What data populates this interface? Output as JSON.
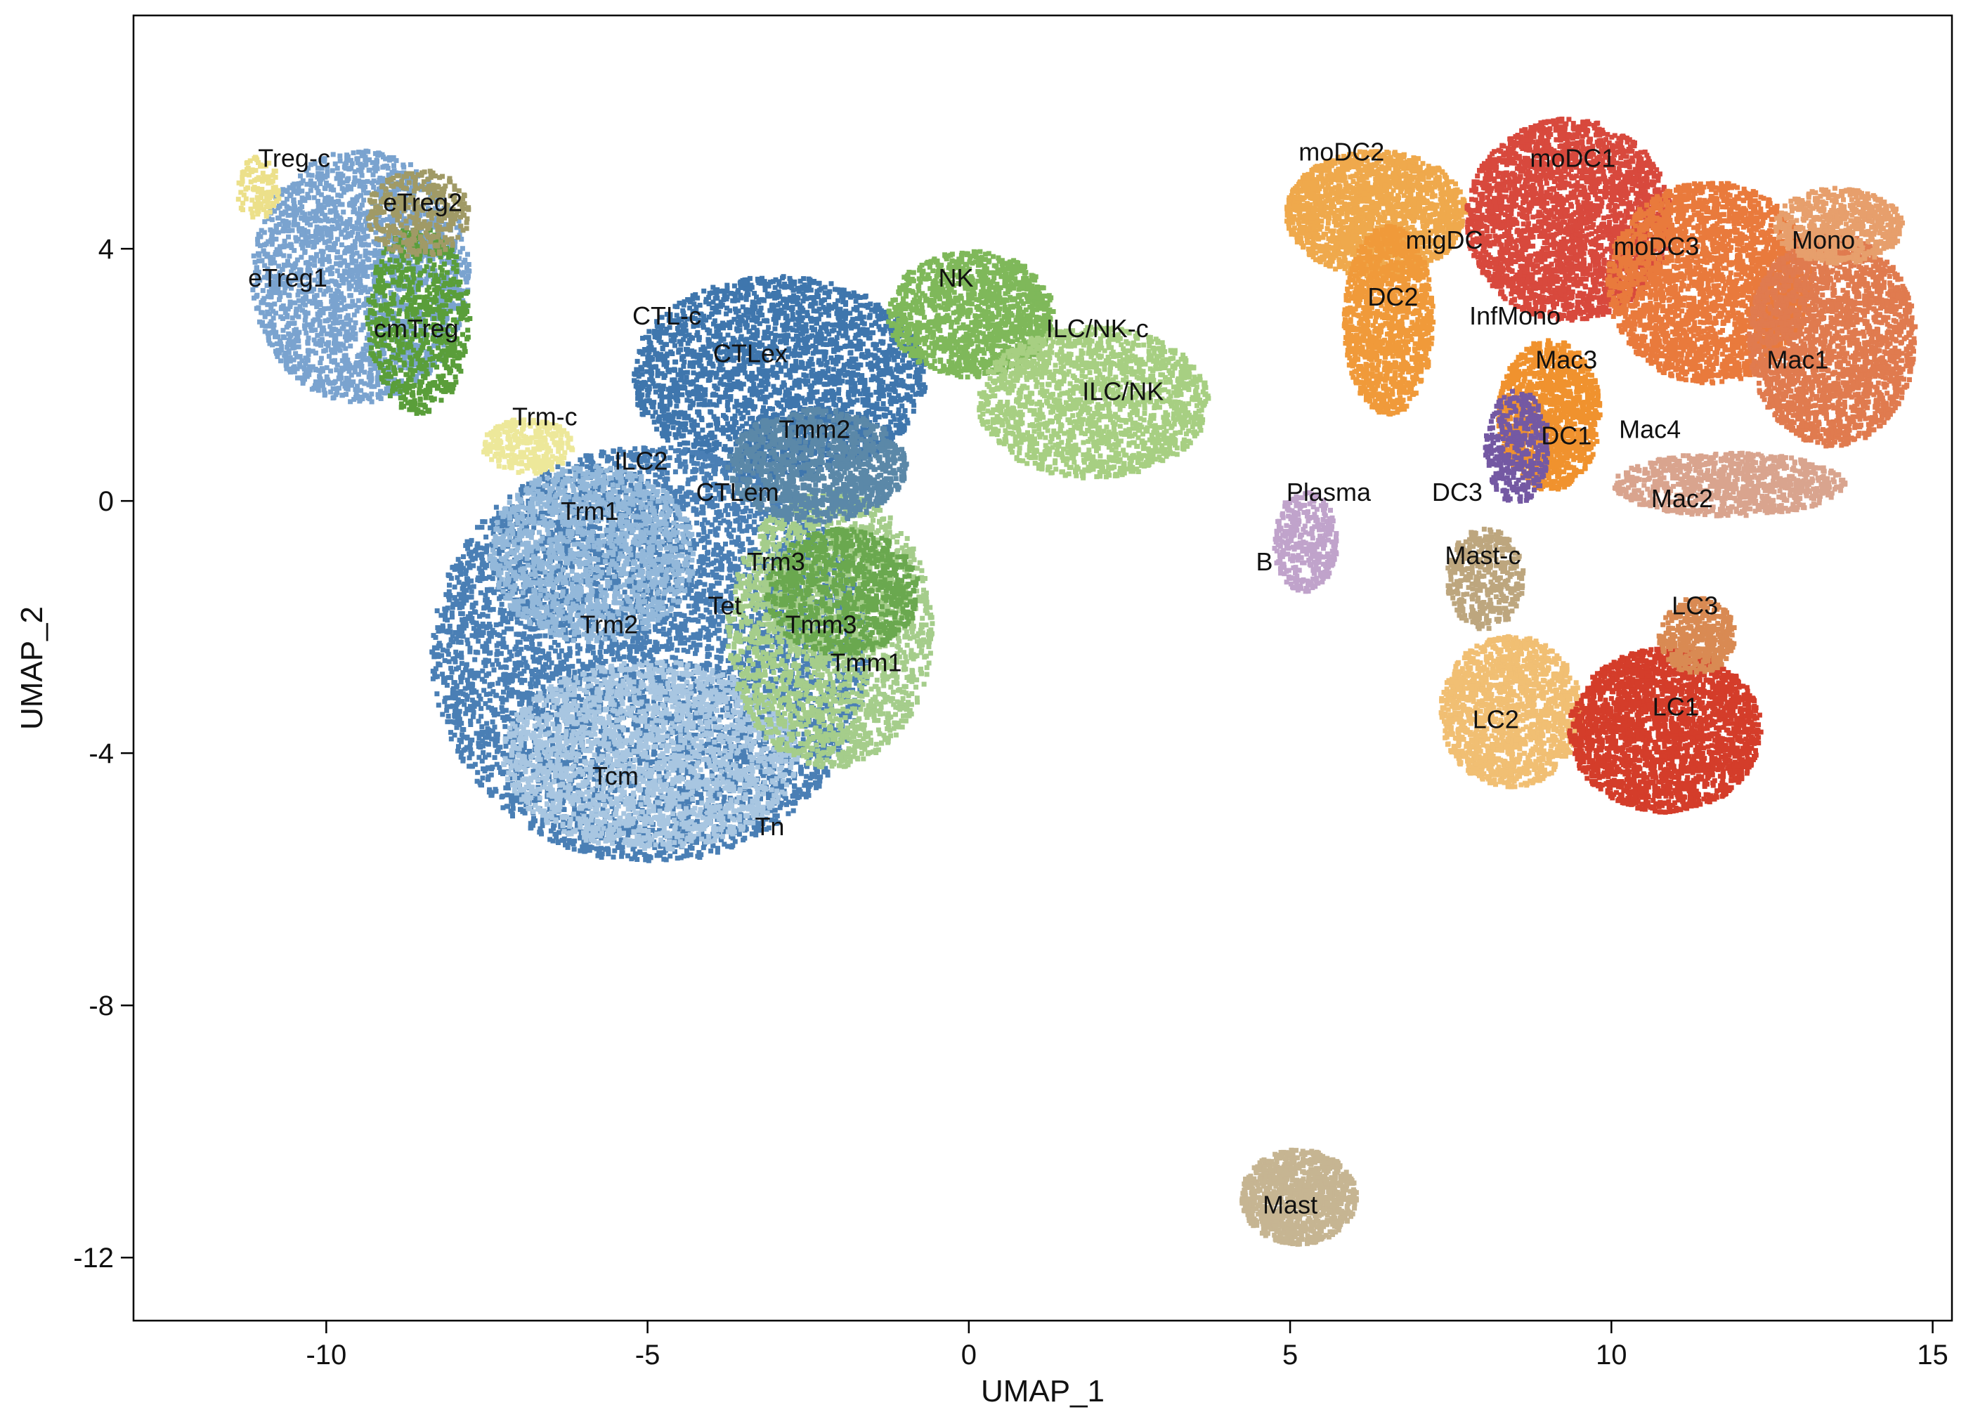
{
  "chart_data": {
    "type": "scatter",
    "title": "",
    "xlabel": "UMAP_1",
    "ylabel": "UMAP_2",
    "xlim": [
      -13,
      15.3
    ],
    "ylim": [
      -13,
      7.7
    ],
    "xticks": [
      -10,
      -5,
      0,
      5,
      10,
      15
    ],
    "yticks": [
      -12,
      -8,
      -4,
      0,
      4
    ],
    "xtick_labels": [
      "-10",
      "-5",
      "0",
      "5",
      "10",
      "15"
    ],
    "ytick_labels": [
      "-12",
      "-8",
      "-4",
      "0",
      "4"
    ],
    "grid": false,
    "legend": "none",
    "clusters": [
      {
        "name": "Treg-c",
        "x": -10.5,
        "y": 5.3,
        "color": "#ece08a"
      },
      {
        "name": "eTreg2",
        "x": -8.5,
        "y": 4.6,
        "color": "#a09a66"
      },
      {
        "name": "eTreg1",
        "x": -10.6,
        "y": 3.4,
        "color": "#6f9ccb"
      },
      {
        "name": "cmTreg",
        "x": -8.6,
        "y": 2.6,
        "color": "#5a9e3a"
      },
      {
        "name": "CTL-c",
        "x": -4.7,
        "y": 2.8,
        "color": "#b36a2c"
      },
      {
        "name": "CTLex",
        "x": -3.4,
        "y": 2.2,
        "color": "#3f76ad"
      },
      {
        "name": "NK",
        "x": -0.2,
        "y": 3.4,
        "color": "#7fb85a"
      },
      {
        "name": "ILC/NK-c",
        "x": 2.0,
        "y": 2.6,
        "color": "#8ec468"
      },
      {
        "name": "ILC/NK",
        "x": 2.4,
        "y": 1.6,
        "color": "#a7cf82"
      },
      {
        "name": "Trm-c",
        "x": -6.6,
        "y": 1.2,
        "color": "#ede89a"
      },
      {
        "name": "Tmm2",
        "x": -2.4,
        "y": 1.0,
        "color": "#5b88a8"
      },
      {
        "name": "ILC2",
        "x": -5.1,
        "y": 0.5,
        "color": "#e07a6a"
      },
      {
        "name": "CTLem",
        "x": -3.6,
        "y": 0.0,
        "color": "#4f86b8"
      },
      {
        "name": "Trm1",
        "x": -5.9,
        "y": -0.3,
        "color": "#93b8da"
      },
      {
        "name": "Trm3",
        "x": -3.0,
        "y": -1.1,
        "color": "#7aa65a"
      },
      {
        "name": "Tet",
        "x": -3.8,
        "y": -1.8,
        "color": "#6c9dc4"
      },
      {
        "name": "Trm2",
        "x": -5.6,
        "y": -2.1,
        "color": "#4a7fb5"
      },
      {
        "name": "Tmm3",
        "x": -2.3,
        "y": -2.1,
        "color": "#6aa84f"
      },
      {
        "name": "Tmm1",
        "x": -1.6,
        "y": -2.7,
        "color": "#a5cd8b"
      },
      {
        "name": "Tcm",
        "x": -5.5,
        "y": -4.5,
        "color": "#a8c6e1"
      },
      {
        "name": "Tn",
        "x": -3.1,
        "y": -5.3,
        "color": "#7c9fc0"
      },
      {
        "name": "moDC2",
        "x": 5.8,
        "y": 5.4,
        "color": "#efa94c"
      },
      {
        "name": "moDC1",
        "x": 9.4,
        "y": 5.3,
        "color": "#d8493d"
      },
      {
        "name": "migDC",
        "x": 7.4,
        "y": 4.0,
        "color": "#6a5aa8"
      },
      {
        "name": "moDC3",
        "x": 10.7,
        "y": 3.9,
        "color": "#e97a3c"
      },
      {
        "name": "Mono",
        "x": 13.3,
        "y": 4.0,
        "color": "#e79f6c"
      },
      {
        "name": "DC2",
        "x": 6.6,
        "y": 3.1,
        "color": "#f09a3a"
      },
      {
        "name": "InfMono",
        "x": 8.5,
        "y": 2.8,
        "color": "#e3683a"
      },
      {
        "name": "Mac3",
        "x": 9.3,
        "y": 2.1,
        "color": "#e55d34"
      },
      {
        "name": "Mac1",
        "x": 12.9,
        "y": 2.1,
        "color": "#e07b4f"
      },
      {
        "name": "DC1",
        "x": 9.3,
        "y": 0.9,
        "color": "#f0922e"
      },
      {
        "name": "Mac4",
        "x": 10.6,
        "y": 1.0,
        "color": "#8f6db0"
      },
      {
        "name": "Plasma",
        "x": 5.6,
        "y": 0.0,
        "color": "#c0a3cb"
      },
      {
        "name": "DC3",
        "x": 7.6,
        "y": 0.0,
        "color": "#7459a3"
      },
      {
        "name": "Mac2",
        "x": 11.1,
        "y": -0.1,
        "color": "#d9a48e"
      },
      {
        "name": "Mast-c",
        "x": 8.0,
        "y": -1.0,
        "color": "#bda67e"
      },
      {
        "name": "B",
        "x": 4.6,
        "y": -1.1,
        "color": "#9b86c0"
      },
      {
        "name": "LC3",
        "x": 11.3,
        "y": -1.8,
        "color": "#d98a53"
      },
      {
        "name": "LC1",
        "x": 11.0,
        "y": -3.4,
        "color": "#d43d2a"
      },
      {
        "name": "LC2",
        "x": 8.2,
        "y": -3.6,
        "color": "#f1bf73"
      },
      {
        "name": "Mast",
        "x": 5.0,
        "y": -11.3,
        "color": "#c6b592"
      }
    ],
    "blobs": [
      {
        "cx": -9.5,
        "cy": 3.6,
        "rx": 1.7,
        "ry": 2.0,
        "color": "#7aa3cf",
        "count": 2200
      },
      {
        "cx": -8.6,
        "cy": 2.9,
        "rx": 0.8,
        "ry": 1.5,
        "color": "#5a9e3a",
        "count": 700
      },
      {
        "cx": -8.6,
        "cy": 4.6,
        "rx": 0.8,
        "ry": 0.7,
        "color": "#a09a66",
        "count": 350
      },
      {
        "cx": -11.1,
        "cy": 5.0,
        "rx": 0.35,
        "ry": 0.5,
        "color": "#ece08a",
        "count": 120
      },
      {
        "cx": -3.0,
        "cy": 2.0,
        "rx": 2.3,
        "ry": 1.6,
        "color": "#3f76ad",
        "count": 2600
      },
      {
        "cx": -5.0,
        "cy": -2.4,
        "rx": 3.4,
        "ry": 3.3,
        "color": "#4a7fb5",
        "count": 6000
      },
      {
        "cx": -5.0,
        "cy": -4.0,
        "rx": 2.3,
        "ry": 1.5,
        "color": "#a8c6e1",
        "count": 2200
      },
      {
        "cx": -5.9,
        "cy": -0.8,
        "rx": 1.6,
        "ry": 1.4,
        "color": "#93b8da",
        "count": 1500
      },
      {
        "cx": -2.2,
        "cy": -2.0,
        "rx": 1.6,
        "ry": 2.2,
        "color": "#a5cd8b",
        "count": 2100
      },
      {
        "cx": -2.0,
        "cy": -1.4,
        "rx": 1.2,
        "ry": 1.0,
        "color": "#6aa84f",
        "count": 900
      },
      {
        "cx": -2.4,
        "cy": 0.6,
        "rx": 1.4,
        "ry": 0.9,
        "color": "#5b88a8",
        "count": 1100
      },
      {
        "cx": -6.9,
        "cy": 0.9,
        "rx": 0.7,
        "ry": 0.45,
        "color": "#ede89a",
        "count": 300
      },
      {
        "cx": 0.0,
        "cy": 3.0,
        "rx": 1.3,
        "ry": 1.0,
        "color": "#7fb85a",
        "count": 1300
      },
      {
        "cx": 1.9,
        "cy": 1.6,
        "rx": 1.8,
        "ry": 1.2,
        "color": "#a7cf82",
        "count": 1700
      },
      {
        "cx": 6.3,
        "cy": 4.6,
        "rx": 1.4,
        "ry": 1.0,
        "color": "#efa94c",
        "count": 1900
      },
      {
        "cx": 6.5,
        "cy": 2.9,
        "rx": 0.7,
        "ry": 1.5,
        "color": "#f09a3a",
        "count": 1200
      },
      {
        "cx": 9.3,
        "cy": 4.5,
        "rx": 1.6,
        "ry": 1.6,
        "color": "#d8493d",
        "count": 2800
      },
      {
        "cx": 11.5,
        "cy": 3.5,
        "rx": 1.6,
        "ry": 1.6,
        "color": "#e97a3c",
        "count": 2700
      },
      {
        "cx": 13.4,
        "cy": 2.6,
        "rx": 1.3,
        "ry": 1.7,
        "color": "#e07b4f",
        "count": 2300
      },
      {
        "cx": 13.5,
        "cy": 4.4,
        "rx": 1.0,
        "ry": 0.6,
        "color": "#e79f6c",
        "count": 700
      },
      {
        "cx": 9.0,
        "cy": 1.4,
        "rx": 0.8,
        "ry": 1.2,
        "color": "#f0922e",
        "count": 1200
      },
      {
        "cx": 11.8,
        "cy": 0.3,
        "rx": 1.8,
        "ry": 0.5,
        "color": "#d9a48e",
        "count": 900
      },
      {
        "cx": 8.5,
        "cy": 0.9,
        "rx": 0.5,
        "ry": 0.9,
        "color": "#7459a3",
        "count": 350
      },
      {
        "cx": 5.2,
        "cy": -0.6,
        "rx": 0.5,
        "ry": 0.8,
        "color": "#c0a3cb",
        "count": 350
      },
      {
        "cx": 8.0,
        "cy": -1.2,
        "rx": 0.6,
        "ry": 0.8,
        "color": "#bda67e",
        "count": 400
      },
      {
        "cx": 8.4,
        "cy": -3.3,
        "rx": 1.1,
        "ry": 1.2,
        "color": "#f1bf73",
        "count": 1500
      },
      {
        "cx": 10.8,
        "cy": -3.6,
        "rx": 1.5,
        "ry": 1.3,
        "color": "#d43d2a",
        "count": 2400
      },
      {
        "cx": 11.3,
        "cy": -2.1,
        "rx": 0.6,
        "ry": 0.6,
        "color": "#d98a53",
        "count": 450
      },
      {
        "cx": 5.1,
        "cy": -11.0,
        "rx": 0.9,
        "ry": 0.75,
        "color": "#c6b592",
        "count": 1100
      }
    ]
  }
}
